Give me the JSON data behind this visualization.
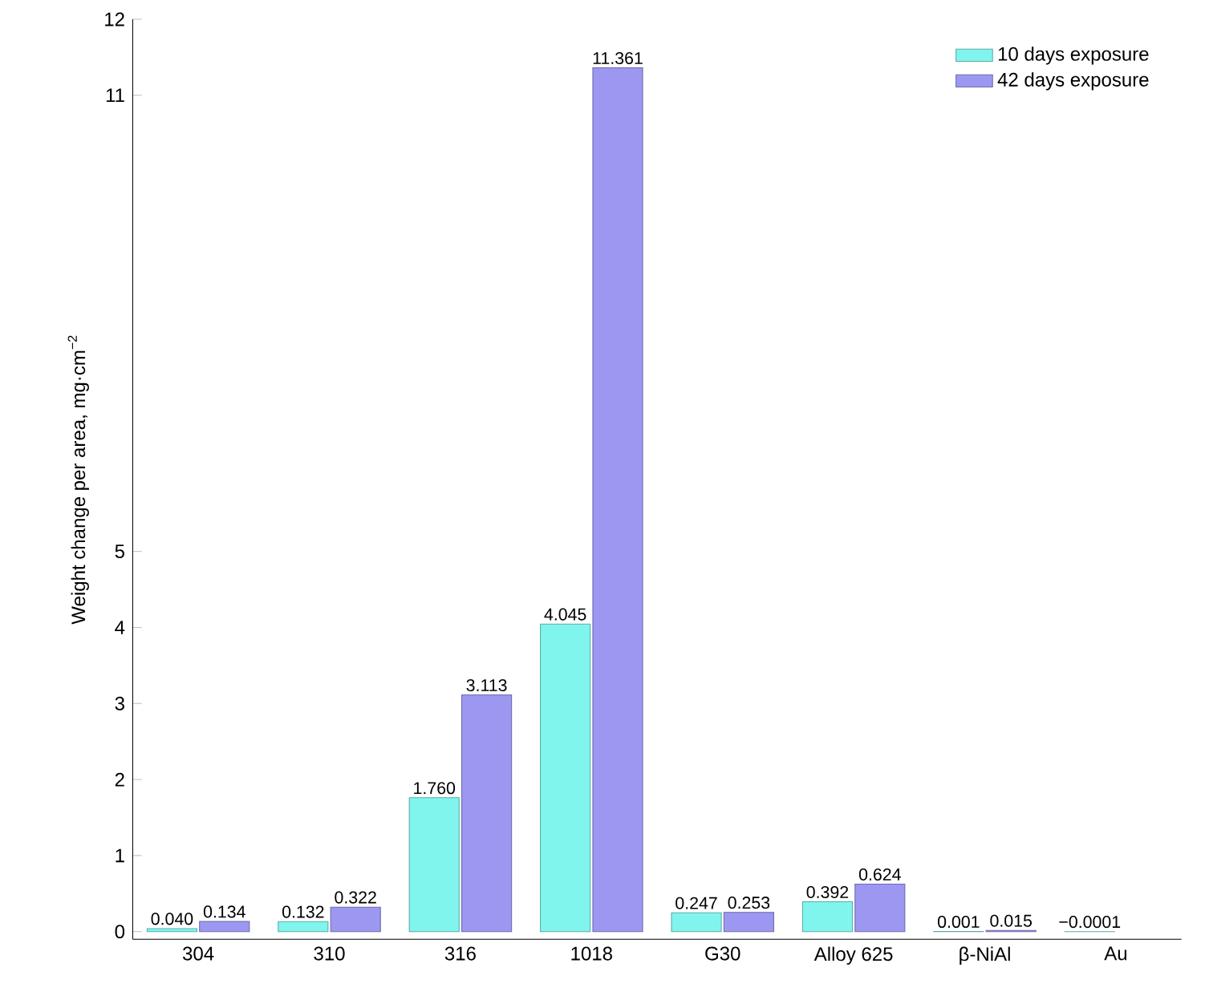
{
  "chart_data": {
    "type": "bar",
    "ylabel": "Weight change per area, mg·cm$^{−2}$",
    "categories": [
      "304",
      "310",
      "316",
      "1018",
      "G30",
      "Alloy 625",
      "β-NiAl",
      "Au"
    ],
    "series": [
      {
        "name": "10 days exposure",
        "color": "#80f5ee",
        "values": [
          0.04,
          0.132,
          1.76,
          4.045,
          0.247,
          0.392,
          0.001,
          -0.0001
        ],
        "value_labels": [
          "0.040",
          "0.132",
          "1.760",
          "4.045",
          "0.247",
          "0.392",
          "0.001",
          "−0.0001"
        ]
      },
      {
        "name": "42 days exposure",
        "color": "#9c98f2",
        "values": [
          0.134,
          0.322,
          3.113,
          11.361,
          0.253,
          0.624,
          0.015,
          null
        ],
        "value_labels": [
          "0.134",
          "0.322",
          "3.113",
          "11.361",
          "0.253",
          "0.624",
          "0.015",
          null
        ]
      }
    ],
    "ylim": [
      -0.1,
      12
    ],
    "yticks": [
      0,
      1,
      2,
      3,
      4,
      5,
      11,
      12
    ],
    "legend": "top right",
    "grid": false
  }
}
